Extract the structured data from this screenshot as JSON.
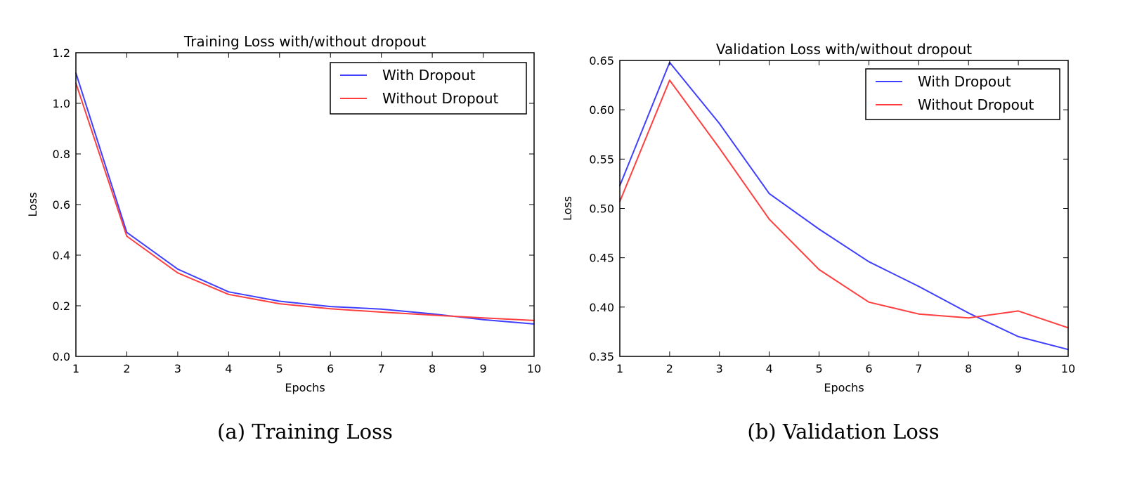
{
  "chart_data": [
    {
      "type": "line",
      "title": "Training Loss with/without dropout",
      "xlabel": "Epochs",
      "ylabel": "Loss",
      "xlim": [
        1,
        10
      ],
      "ylim": [
        0.0,
        1.2
      ],
      "x_ticks": [
        "1",
        "2",
        "3",
        "4",
        "5",
        "6",
        "7",
        "8",
        "9",
        "10"
      ],
      "y_ticks": [
        "0.0",
        "0.2",
        "0.4",
        "0.6",
        "0.8",
        "1.0",
        "1.2"
      ],
      "grid": false,
      "legend_position": "top-right",
      "caption": "(a) Training Loss",
      "x": [
        1,
        2,
        3,
        4,
        5,
        6,
        7,
        8,
        9,
        10
      ],
      "series": [
        {
          "name": "With Dropout",
          "color": "#3f3fff",
          "values": [
            1.12,
            0.49,
            0.345,
            0.255,
            0.218,
            0.197,
            0.187,
            0.168,
            0.145,
            0.128
          ]
        },
        {
          "name": "Without Dropout",
          "color": "#ff3f3f",
          "values": [
            1.08,
            0.475,
            0.33,
            0.245,
            0.208,
            0.188,
            0.175,
            0.163,
            0.152,
            0.142
          ]
        }
      ]
    },
    {
      "type": "line",
      "title": "Validation Loss with/without dropout",
      "xlabel": "Epochs",
      "ylabel": "Loss",
      "xlim": [
        1,
        10
      ],
      "ylim": [
        0.35,
        0.65
      ],
      "x_ticks": [
        "1",
        "2",
        "3",
        "4",
        "5",
        "6",
        "7",
        "8",
        "9",
        "10"
      ],
      "y_ticks": [
        "0.35",
        "0.40",
        "0.45",
        "0.50",
        "0.55",
        "0.60",
        "0.65"
      ],
      "grid": false,
      "legend_position": "top-right",
      "caption": "(b) Validation Loss",
      "x": [
        1,
        2,
        3,
        4,
        5,
        6,
        7,
        8,
        9,
        10
      ],
      "series": [
        {
          "name": "With Dropout",
          "color": "#3f3fff",
          "values": [
            0.523,
            0.648,
            0.586,
            0.515,
            0.479,
            0.446,
            0.421,
            0.394,
            0.37,
            0.357
          ]
        },
        {
          "name": "Without Dropout",
          "color": "#ff3f3f",
          "values": [
            0.507,
            0.63,
            0.561,
            0.489,
            0.438,
            0.405,
            0.393,
            0.389,
            0.396,
            0.379
          ]
        }
      ]
    }
  ]
}
